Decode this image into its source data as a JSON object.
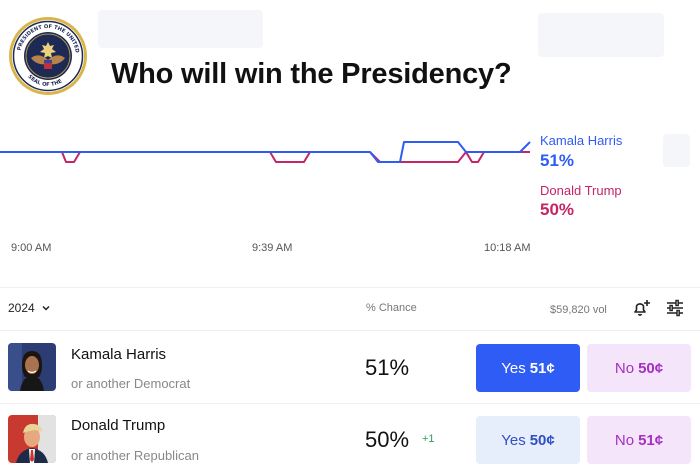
{
  "market": {
    "title": "Who will win the Presidency?"
  },
  "chart": {
    "legend": [
      {
        "name": "Kamala Harris",
        "value": "51%",
        "color": "#2f5cf5"
      },
      {
        "name": "Donald Trump",
        "value": "50%",
        "color": "#c42567"
      }
    ],
    "time_labels": [
      "9:00 AM",
      "9:39 AM",
      "10:18 AM"
    ]
  },
  "chart_data": {
    "type": "line",
    "series": [
      {
        "name": "Kamala Harris",
        "color": "#2f5cf5",
        "x": [
          0,
          62,
          78,
          270,
          306,
          370,
          378,
          380,
          400,
          404,
          458,
          466,
          484,
          520,
          530
        ],
        "values": [
          50,
          50,
          50,
          50,
          50,
          50,
          49,
          49,
          49,
          51,
          51,
          50,
          50,
          50,
          51
        ]
      },
      {
        "name": "Donald Trump",
        "color": "#c42567",
        "x": [
          0,
          62,
          66,
          74,
          80,
          270,
          276,
          304,
          310,
          370,
          380,
          458,
          466,
          472,
          478,
          484,
          530
        ],
        "values": [
          50,
          50,
          49,
          49,
          50,
          50,
          49,
          49,
          50,
          50,
          49,
          49,
          50,
          49,
          49,
          50,
          50
        ]
      }
    ]
  },
  "controls": {
    "year_label": "2024",
    "chance_header": "% Chance",
    "volume": "$59,820 vol"
  },
  "outcomes": [
    {
      "name": "Kamala Harris",
      "sub": "or another Democrat",
      "chance": "51%",
      "delta": "",
      "yes_label": "Yes",
      "yes_price": "51¢",
      "no_label": "No",
      "no_price": "50¢"
    },
    {
      "name": "Donald Trump",
      "sub": "or another Republican",
      "chance": "50%",
      "delta": "+1",
      "yes_label": "Yes",
      "yes_price": "50¢",
      "no_label": "No",
      "no_price": "51¢"
    }
  ],
  "icons": {
    "seal": "presidential-seal-icon",
    "year_chevron": "chevron-down-icon",
    "alert": "bell-plus-icon",
    "filter": "sliders-icon"
  }
}
